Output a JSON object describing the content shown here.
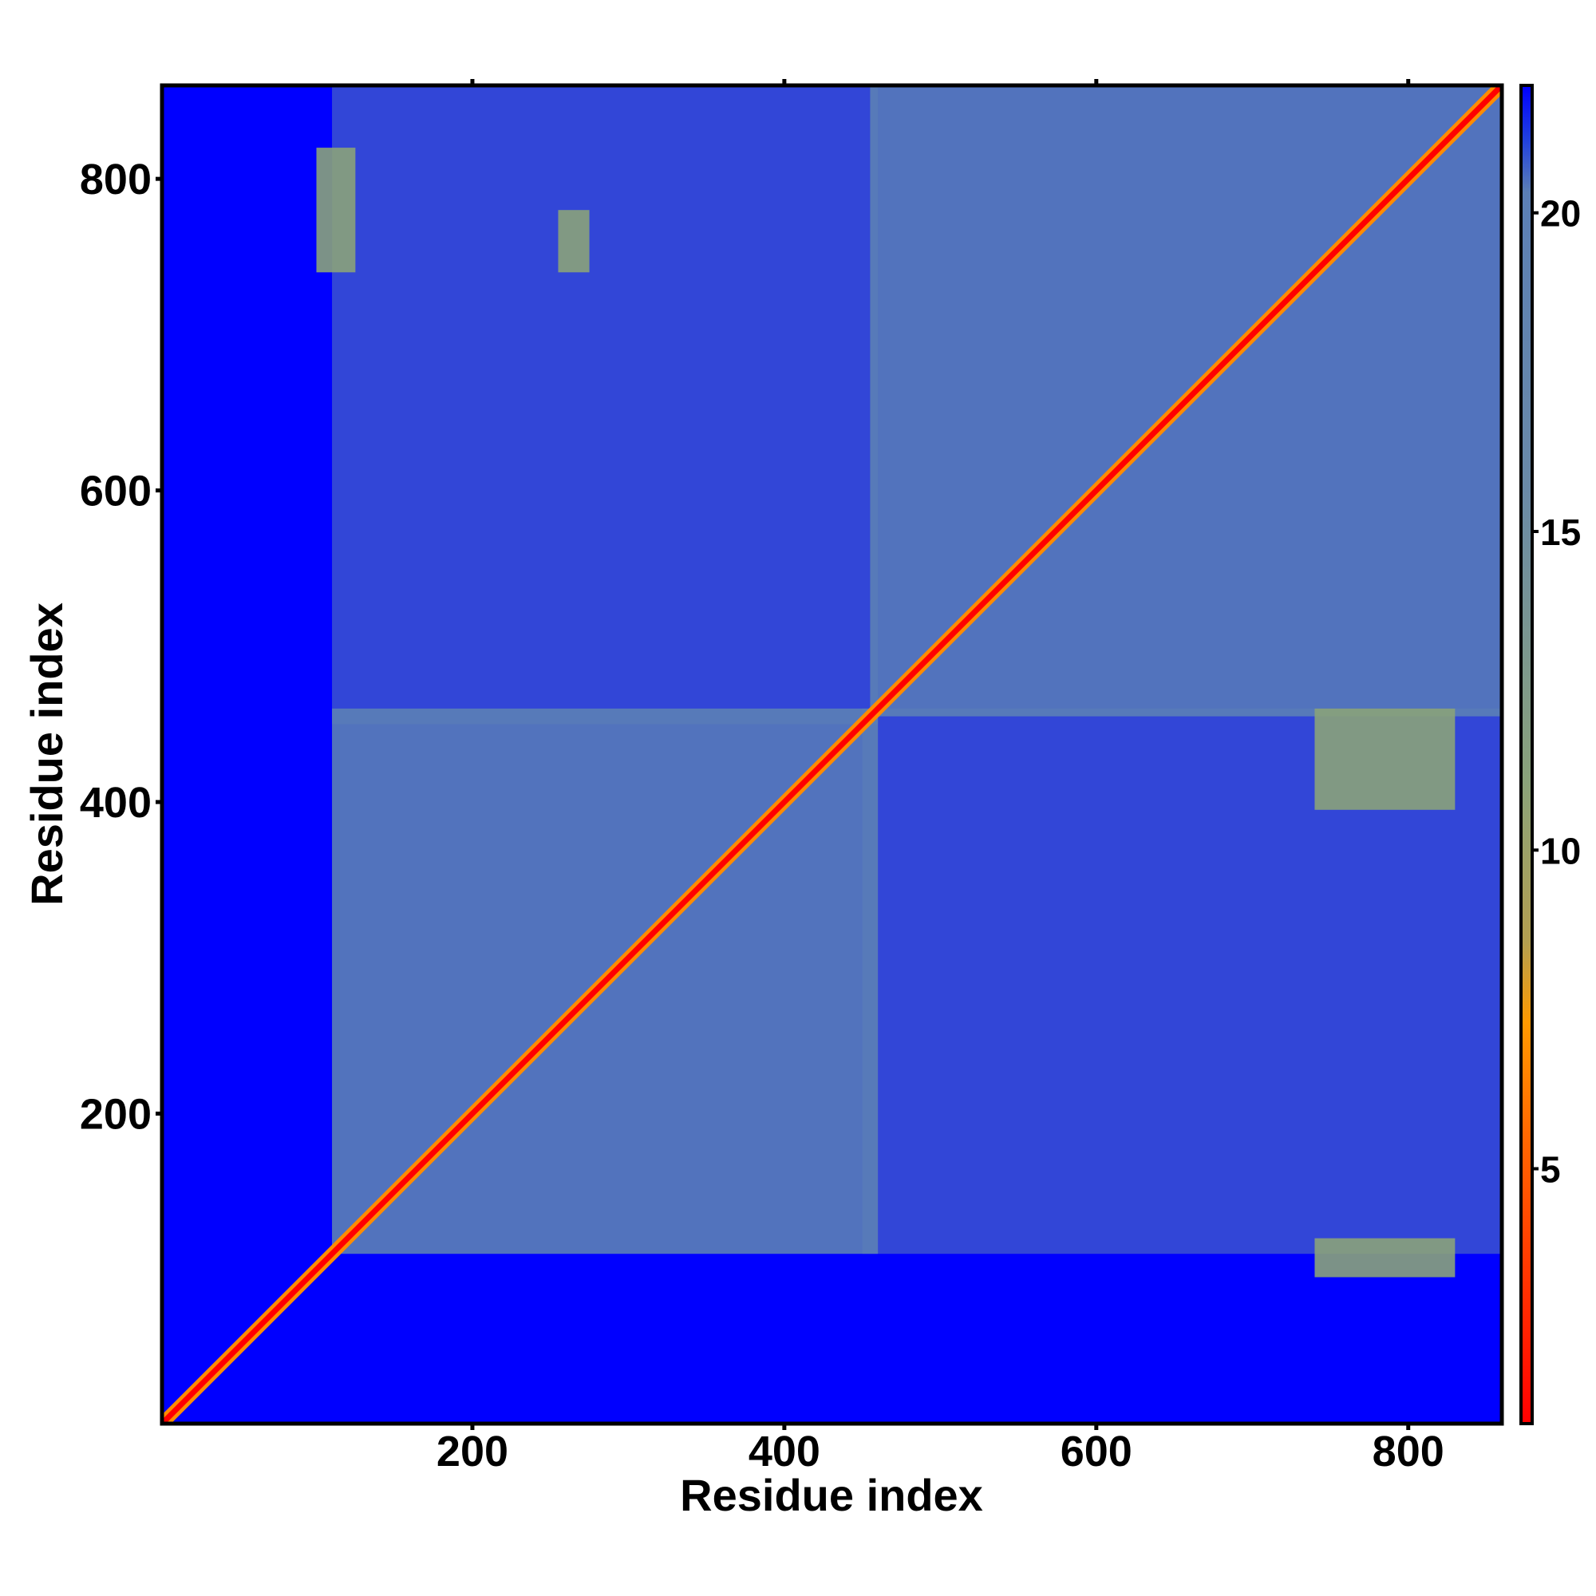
{
  "chart_data": {
    "type": "heatmap",
    "title": "",
    "xlabel": "Residue index",
    "ylabel": "Residue index",
    "xlim": [
      1,
      860
    ],
    "ylim": [
      1,
      860
    ],
    "x_ticks": [
      200,
      400,
      600,
      800
    ],
    "y_ticks": [
      200,
      400,
      600,
      800
    ],
    "colorbar": {
      "ticks": [
        5,
        10,
        15,
        20
      ],
      "range": [
        1,
        22
      ],
      "colors": {
        "low": "#ff0000",
        "mid_low": "#ff8c00",
        "mid": "#8aa27a",
        "high": "#5b7fb6",
        "max": "#0000ff"
      }
    },
    "background_color": "#0000ff",
    "diagonal_color": "#ff0000",
    "domains": [
      {
        "start": 110,
        "end": 460
      },
      {
        "start": 455,
        "end": 860
      }
    ],
    "contact_blocks": [
      {
        "x": [
          110,
          460
        ],
        "y": [
          110,
          460
        ],
        "level": 17
      },
      {
        "x": [
          455,
          860
        ],
        "y": [
          455,
          860
        ],
        "level": 17
      },
      {
        "x": [
          450,
          860
        ],
        "y": [
          110,
          460
        ],
        "level": 19
      },
      {
        "x": [
          110,
          460
        ],
        "y": [
          450,
          860
        ],
        "level": 19
      },
      {
        "x": [
          740,
          830
        ],
        "y": [
          95,
          120
        ],
        "level": 16
      },
      {
        "x": [
          740,
          830
        ],
        "y": [
          395,
          460
        ],
        "level": 16
      },
      {
        "x": [
          100,
          125
        ],
        "y": [
          740,
          820
        ],
        "level": 16
      },
      {
        "x": [
          255,
          275
        ],
        "y": [
          740,
          780
        ],
        "level": 16
      }
    ]
  }
}
